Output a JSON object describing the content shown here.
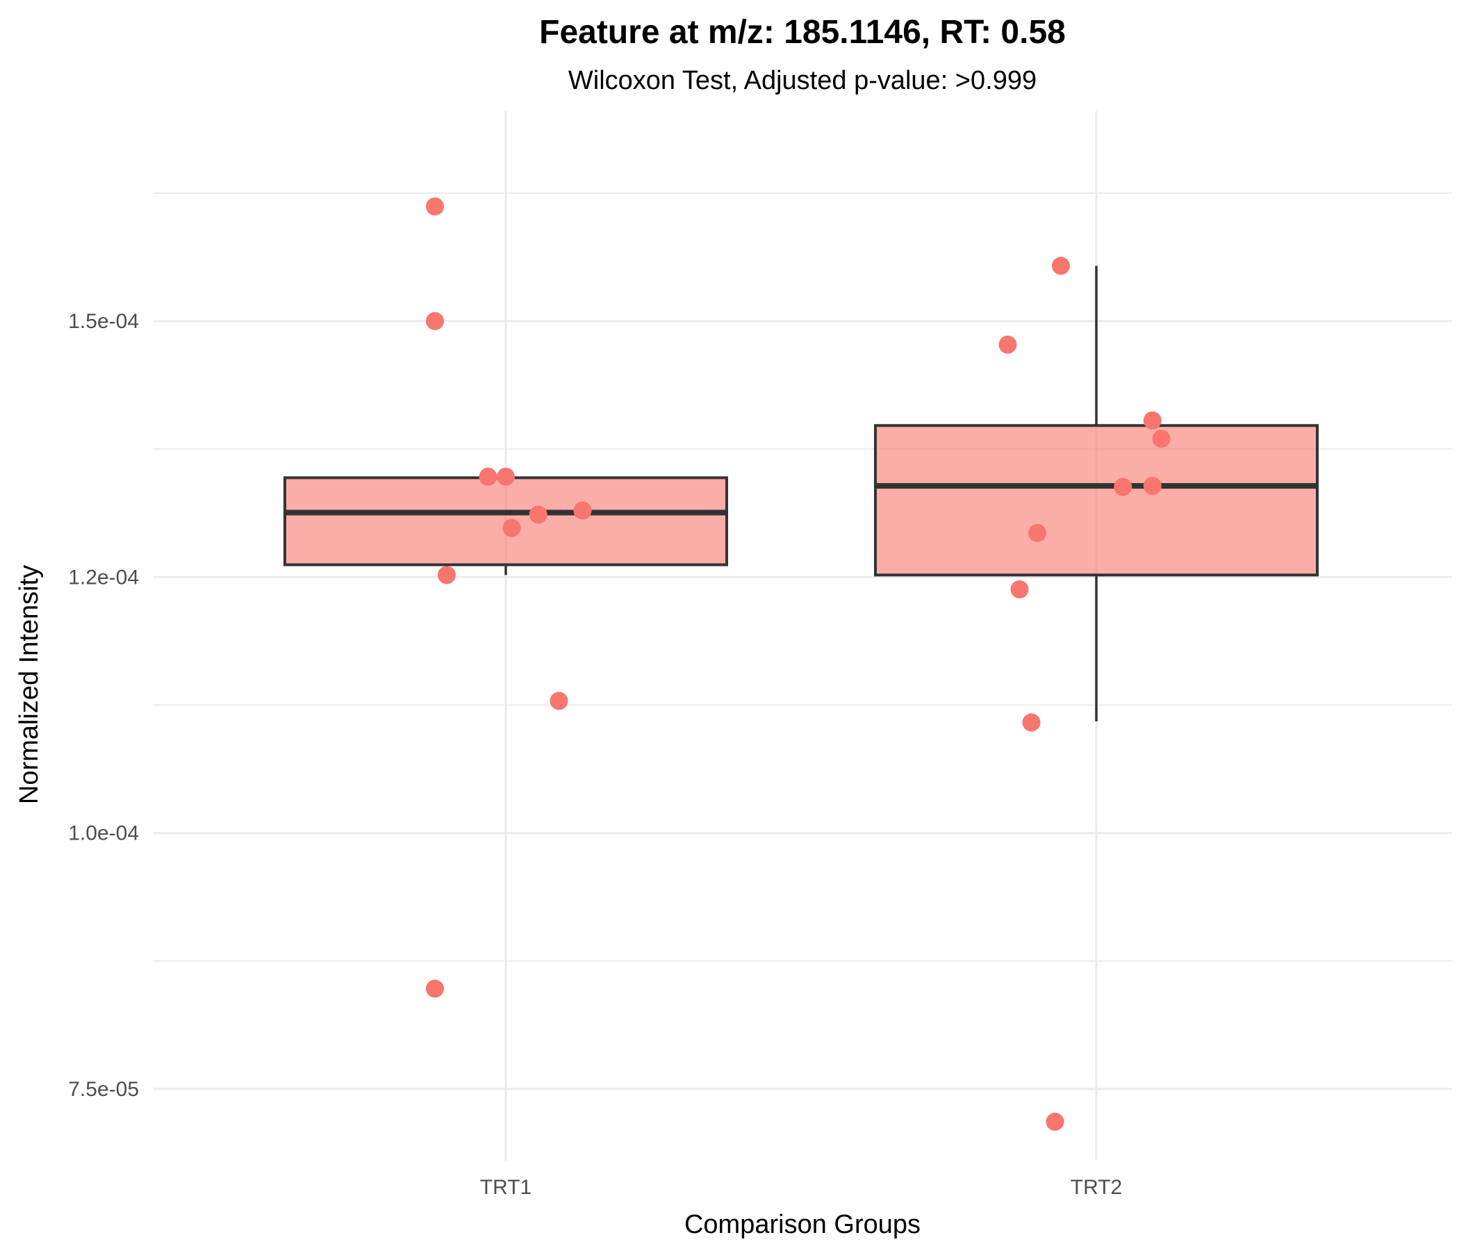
{
  "chart_data": {
    "type": "box",
    "title": "Feature at m/z: 185.1146, RT: 0.58",
    "subtitle": "Wilcoxon Test, Adjusted p-value: >0.999",
    "xlabel": "Comparison Groups",
    "ylabel": "Normalized Intensity",
    "ylim": [
      6.8e-05,
      0.0001705
    ],
    "y_ticks": [
      {
        "value": 7.5e-05,
        "label": "7.5e-05"
      },
      {
        "value": 0.0001,
        "label": "1.0e-04"
      },
      {
        "value": 0.000125,
        "label": "1.2e-04"
      },
      {
        "value": 0.00015,
        "label": "1.5e-04"
      }
    ],
    "grid": true,
    "fill_color": "#F8766D",
    "box_fill_opacity": 0.6,
    "outline_color": "#333333",
    "categories": [
      "TRT1",
      "TRT2"
    ],
    "groups": [
      {
        "name": "TRT1",
        "box": {
          "q1": 0.0001262,
          "median": 0.0001313,
          "q3": 0.0001347,
          "whisker_low": 0.0001252,
          "whisker_high": 0.0001347
        },
        "points": [
          {
            "jitter": -0.12,
            "y": 0.0001612
          },
          {
            "jitter": -0.12,
            "y": 0.00015
          },
          {
            "jitter": -0.1,
            "y": 0.0001252
          },
          {
            "jitter": -0.03,
            "y": 0.0001348
          },
          {
            "jitter": 0.0,
            "y": 0.0001348
          },
          {
            "jitter": 0.01,
            "y": 0.0001298
          },
          {
            "jitter": 0.055,
            "y": 0.0001311
          },
          {
            "jitter": 0.13,
            "y": 0.0001315
          },
          {
            "jitter": 0.09,
            "y": 0.0001129
          },
          {
            "jitter": -0.12,
            "y": 8.48e-05
          }
        ]
      },
      {
        "name": "TRT2",
        "box": {
          "q1": 0.0001252,
          "median": 0.0001339,
          "q3": 0.0001398,
          "whisker_low": 0.0001109,
          "whisker_high": 0.0001554
        },
        "points": [
          {
            "jitter": -0.06,
            "y": 0.0001554
          },
          {
            "jitter": -0.15,
            "y": 0.0001477
          },
          {
            "jitter": 0.095,
            "y": 0.0001403
          },
          {
            "jitter": 0.11,
            "y": 0.0001385
          },
          {
            "jitter": 0.045,
            "y": 0.0001338
          },
          {
            "jitter": 0.095,
            "y": 0.0001339
          },
          {
            "jitter": -0.1,
            "y": 0.0001293
          },
          {
            "jitter": -0.13,
            "y": 0.0001238
          },
          {
            "jitter": -0.11,
            "y": 0.0001108
          },
          {
            "jitter": -0.07,
            "y": 7.18e-05
          }
        ]
      }
    ]
  }
}
